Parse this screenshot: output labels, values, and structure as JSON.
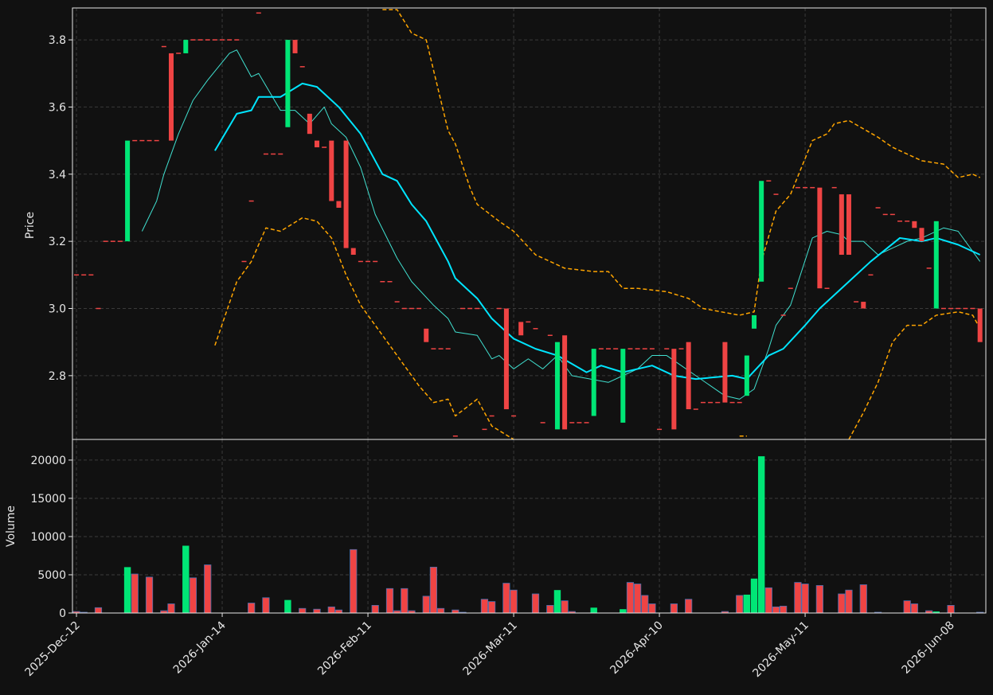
{
  "chart_data": {
    "type": "candlestick",
    "categories": [
      "2025-Dec-12",
      null,
      null,
      null,
      null,
      null,
      null,
      null,
      null,
      null,
      null,
      null,
      null,
      null,
      null,
      null,
      null,
      null,
      null,
      null,
      "2026-Jan-14",
      null,
      null,
      null,
      null,
      null,
      null,
      null,
      null,
      null,
      null,
      null,
      null,
      null,
      null,
      null,
      null,
      null,
      null,
      null,
      "2026-Feb-11",
      null,
      null,
      null,
      null,
      null,
      null,
      null,
      null,
      null,
      null,
      null,
      null,
      null,
      null,
      null,
      null,
      null,
      null,
      null,
      "2026-Mar-11",
      null,
      null,
      null,
      null,
      null,
      null,
      null,
      null,
      null,
      null,
      null,
      null,
      null,
      null,
      null,
      null,
      null,
      null,
      null,
      "2026-Apr-10",
      null,
      null,
      null,
      null,
      null,
      null,
      null,
      null,
      null,
      null,
      null,
      null,
      null,
      null,
      null,
      null,
      null,
      null,
      null,
      "2026-May-11",
      null,
      null,
      null,
      null,
      null,
      null,
      null,
      null,
      null,
      null,
      null,
      null,
      null,
      null,
      null,
      null,
      null,
      null,
      null,
      "2026-Jun-08",
      null,
      null,
      null,
      null
    ],
    "xlim": [
      -0.55,
      124.8
    ],
    "grid": true,
    "up_color": "#00e676",
    "down_color": "#ef4444",
    "price": {
      "ylabel": "Price",
      "ylim": [
        2.61,
        3.895
      ],
      "yticks": [
        2.8,
        {
          "value": 3,
          "label": "3.0"
        },
        3.2,
        3.4,
        3.6,
        3.8
      ],
      "open": [
        3.1,
        3.1,
        3.1,
        3.0,
        3.2,
        3.2,
        3.2,
        3.2,
        3.5,
        3.5,
        3.5,
        3.5,
        3.78,
        3.76,
        3.76,
        3.76,
        3.8,
        3.8,
        3.8,
        3.8,
        3.8,
        3.8,
        3.8,
        3.14,
        3.32,
        3.88,
        3.46,
        3.46,
        3.46,
        3.54,
        3.8,
        3.72,
        3.58,
        3.5,
        3.48,
        3.5,
        3.32,
        3.5,
        3.18,
        3.14,
        3.14,
        3.14,
        3.08,
        3.08,
        3.02,
        3.0,
        3.0,
        3.0,
        2.94,
        2.88,
        2.88,
        2.88,
        2.62,
        3.0,
        3.0,
        3.0,
        2.64,
        2.68,
        3.0,
        3.0,
        2.68,
        2.96,
        2.96,
        2.94,
        2.66,
        2.92,
        2.64,
        2.92,
        2.66,
        2.66,
        2.66,
        2.68,
        2.88,
        2.88,
        2.88,
        2.66,
        2.88,
        2.88,
        2.88,
        2.88,
        2.64,
        2.88,
        2.88,
        2.88,
        2.9,
        2.7,
        2.72,
        2.72,
        2.72,
        2.9,
        2.72,
        2.72,
        2.74,
        2.94,
        3.08,
        3.38,
        3.34,
        2.98,
        3.06,
        3.36,
        3.36,
        3.36,
        3.36,
        3.06,
        3.36,
        3.34,
        3.34,
        3.02,
        3.02,
        3.1,
        3.3,
        3.28,
        3.28,
        3.26,
        3.26,
        3.26,
        3.24,
        3.12,
        3.0,
        3.0,
        3.0,
        3.0,
        3.0,
        3.0,
        3.0
      ],
      "close": [
        3.1,
        3.1,
        3.1,
        3.0,
        3.2,
        3.2,
        3.2,
        3.5,
        3.5,
        3.5,
        3.5,
        3.5,
        3.78,
        3.5,
        3.76,
        3.8,
        3.8,
        3.8,
        3.8,
        3.8,
        3.8,
        3.8,
        3.8,
        3.14,
        3.32,
        3.88,
        3.46,
        3.46,
        3.46,
        3.8,
        3.76,
        3.72,
        3.52,
        3.48,
        3.48,
        3.32,
        3.3,
        3.18,
        3.16,
        3.14,
        3.14,
        3.14,
        3.08,
        3.08,
        3.02,
        3.0,
        3.0,
        3.0,
        2.9,
        2.88,
        2.88,
        2.88,
        2.62,
        3.0,
        3.0,
        3.0,
        2.64,
        2.68,
        3.0,
        2.7,
        2.68,
        2.92,
        2.96,
        2.94,
        2.66,
        2.92,
        2.9,
        2.64,
        2.66,
        2.66,
        2.66,
        2.88,
        2.88,
        2.88,
        2.88,
        2.88,
        2.88,
        2.88,
        2.88,
        2.88,
        2.64,
        2.88,
        2.64,
        2.88,
        2.7,
        2.7,
        2.72,
        2.72,
        2.72,
        2.72,
        2.72,
        2.72,
        2.86,
        2.98,
        3.38,
        3.38,
        3.34,
        2.98,
        3.06,
        3.36,
        3.36,
        3.36,
        3.06,
        3.06,
        3.36,
        3.16,
        3.16,
        3.02,
        3.0,
        3.1,
        3.3,
        3.28,
        3.28,
        3.26,
        3.26,
        3.24,
        3.2,
        3.12,
        3.26,
        3.0,
        3.0,
        3.0,
        3.0,
        3.0,
        2.9
      ],
      "overlays": [
        {
          "color": "#40e0d0",
          "linewidth": 1,
          "dashed": false,
          "x": [
            9,
            11,
            12,
            14,
            16,
            18,
            21,
            22,
            23,
            24,
            25,
            28,
            30,
            32,
            34,
            35,
            37,
            39,
            41,
            44,
            46,
            49,
            51,
            52,
            55,
            57,
            58,
            60,
            62,
            64,
            66,
            68,
            73,
            75,
            77,
            79,
            81,
            83,
            85,
            89,
            91,
            93,
            95,
            96,
            98,
            101,
            103,
            105,
            106,
            108,
            110,
            112,
            114,
            116,
            119,
            121,
            124
          ],
          "values": [
            3.23,
            3.32,
            3.4,
            3.52,
            3.62,
            3.68,
            3.76,
            3.77,
            3.73,
            3.69,
            3.7,
            3.59,
            3.59,
            3.55,
            3.6,
            3.55,
            3.51,
            3.42,
            3.28,
            3.15,
            3.08,
            3.01,
            2.97,
            2.93,
            2.92,
            2.85,
            2.86,
            2.82,
            2.85,
            2.82,
            2.86,
            2.8,
            2.78,
            2.8,
            2.82,
            2.86,
            2.86,
            2.83,
            2.8,
            2.74,
            2.73,
            2.76,
            2.88,
            2.95,
            3.01,
            3.21,
            3.23,
            3.22,
            3.2,
            3.2,
            3.16,
            3.18,
            3.2,
            3.21,
            3.24,
            3.23,
            3.14
          ]
        },
        {
          "color": "#00e5ff",
          "linewidth": 2,
          "dashed": false,
          "x": [
            19,
            22,
            24,
            25,
            28,
            31,
            33,
            36,
            39,
            42,
            44,
            46,
            48,
            51,
            52,
            55,
            57,
            60,
            63,
            66,
            70,
            72,
            75,
            77,
            79,
            82,
            85,
            90,
            92,
            95,
            97,
            100,
            102,
            106,
            109,
            113,
            116,
            118,
            121,
            124
          ],
          "values": [
            3.47,
            3.58,
            3.59,
            3.63,
            3.63,
            3.67,
            3.66,
            3.6,
            3.52,
            3.4,
            3.38,
            3.31,
            3.26,
            3.14,
            3.09,
            3.03,
            2.97,
            2.91,
            2.88,
            2.86,
            2.81,
            2.83,
            2.81,
            2.82,
            2.83,
            2.8,
            2.79,
            2.8,
            2.79,
            2.86,
            2.88,
            2.95,
            3.0,
            3.08,
            3.14,
            3.21,
            3.2,
            3.21,
            3.19,
            3.16
          ]
        },
        {
          "color": "#ffa500",
          "linewidth": 1.5,
          "dashed": true,
          "x": [
            42,
            44,
            46,
            48,
            51,
            52,
            54,
            55,
            58,
            60,
            63,
            67,
            71,
            73,
            75,
            77,
            81,
            84,
            86,
            91,
            93,
            94,
            96,
            98,
            101,
            103,
            104,
            106,
            110,
            112,
            114,
            116,
            119,
            121,
            123,
            124
          ],
          "values": [
            3.89,
            3.89,
            3.82,
            3.8,
            3.53,
            3.49,
            3.36,
            3.31,
            3.26,
            3.23,
            3.16,
            3.12,
            3.11,
            3.11,
            3.06,
            3.06,
            3.05,
            3.03,
            3.0,
            2.98,
            2.99,
            3.14,
            3.29,
            3.34,
            3.5,
            3.52,
            3.55,
            3.56,
            3.51,
            3.48,
            3.46,
            3.44,
            3.43,
            3.39,
            3.4,
            3.39
          ]
        },
        {
          "color": "#ffa500",
          "linewidth": 1.5,
          "dashed": true,
          "x": [
            19,
            22,
            24,
            26,
            28,
            31,
            33,
            35,
            37,
            39,
            42,
            45,
            47,
            49,
            51,
            52,
            55,
            57,
            60,
            61,
            91,
            92,
            93,
            106,
            108,
            110,
            112,
            114,
            116,
            118,
            121,
            123,
            124
          ],
          "values": [
            2.89,
            3.08,
            3.14,
            3.24,
            3.23,
            3.27,
            3.26,
            3.21,
            3.1,
            3.01,
            2.92,
            2.83,
            2.77,
            2.72,
            2.73,
            2.68,
            2.73,
            2.65,
            2.61,
            null,
            2.62,
            2.62,
            null,
            2.61,
            2.69,
            2.78,
            2.9,
            2.95,
            2.95,
            2.98,
            2.99,
            2.98,
            2.94
          ]
        }
      ]
    },
    "volume": {
      "ylabel": "Volume",
      "ylim": [
        0,
        22700
      ],
      "yticks": [
        0,
        5000,
        10000,
        15000,
        20000
      ],
      "values": [
        200,
        100,
        0,
        700,
        0,
        0,
        0,
        6000,
        5100,
        0,
        4700,
        0,
        300,
        1200,
        0,
        8800,
        4600,
        0,
        6300,
        0,
        0,
        0,
        0,
        0,
        1300,
        0,
        2000,
        0,
        0,
        1700,
        0,
        600,
        0,
        500,
        0,
        800,
        400,
        0,
        8300,
        0,
        0,
        1000,
        0,
        3200,
        300,
        3200,
        300,
        0,
        2200,
        6000,
        600,
        0,
        400,
        100,
        0,
        0,
        1800,
        1500,
        0,
        3900,
        3000,
        0,
        0,
        2500,
        0,
        1000,
        3000,
        1600,
        200,
        0,
        0,
        700,
        0,
        0,
        0,
        500,
        4000,
        3800,
        2300,
        1200,
        0,
        0,
        1200,
        0,
        1800,
        0,
        0,
        0,
        0,
        200,
        0,
        2300,
        2400,
        4500,
        20500,
        3300,
        800,
        900,
        0,
        4000,
        3800,
        0,
        3600,
        0,
        0,
        2500,
        3000,
        0,
        3700,
        0,
        100,
        0,
        0,
        0,
        1600,
        1200,
        0,
        300,
        200,
        0,
        1000,
        0,
        0,
        0,
        100
      ]
    }
  }
}
